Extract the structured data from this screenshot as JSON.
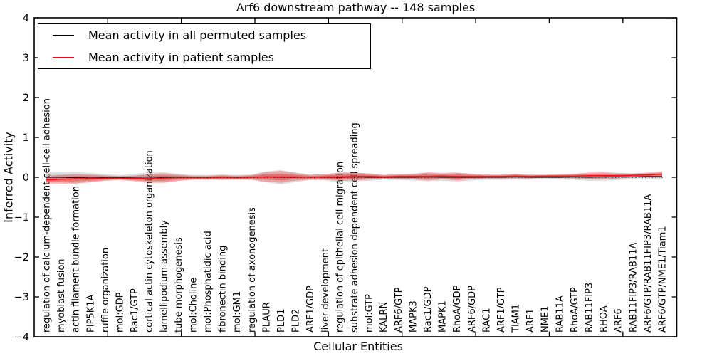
{
  "chart_data": {
    "type": "line",
    "title": "Arf6 downstream pathway -- 148 samples",
    "xlabel": "Cellular Entities",
    "ylabel": "Inferred Activity",
    "ylim": [
      -4,
      4
    ],
    "yticks": [
      4,
      3,
      2,
      1,
      0,
      -1,
      -2,
      -3,
      -4
    ],
    "grid": false,
    "legend_position": "upper left",
    "zero_line": {
      "style": "dotted",
      "color": "#000000",
      "y": 0
    },
    "categories": [
      "regulation of calcium-dependent cell-cell adhesion",
      "myoblast fusion",
      "actin filament bundle formation",
      "PIP5K1A",
      "ruffle organization",
      "mol:GDP",
      "Rac1/GTP",
      "cortical actin cytoskeleton organization",
      "lamellipodium assembly",
      "tube morphogenesis",
      "mol:Choline",
      "mol:Phosphatidic acid",
      "fibronectin binding",
      "mol:GM1",
      "regulation of axonogenesis",
      "PLAUR",
      "PLD1",
      "PLD2",
      "ARF1/GDP",
      "liver development",
      "regulation of epithelial cell migration",
      "substrate adhesion-dependent cell spreading",
      "mol:GTP",
      "KALRN",
      "ARF6/GTP",
      "MAPK3",
      "Rac1/GDP",
      "MAPK1",
      "RhoA/GDP",
      "ARF6/GDP",
      "RAC1",
      "ARF1/GTP",
      "TIAM1",
      "ARF1",
      "NME1",
      "RAB11A",
      "RhoA/GTP",
      "RAB11FIP3",
      "RHOA",
      "ARF6",
      "RAB11FIP3/RAB11A",
      "ARF6/GTP/RAB11FIP3/RAB11A",
      "ARF6/GTP/NME1/Tiam1"
    ],
    "series": [
      {
        "name": "Mean activity in all permuted samples",
        "color": "#000000",
        "band_color": "#999999",
        "values": [
          0.0,
          0.0,
          -0.01,
          0.0,
          0.0,
          0.0,
          0.0,
          0.01,
          0.0,
          0.0,
          0.0,
          0.0,
          0.0,
          0.0,
          0.0,
          0.01,
          0.0,
          0.0,
          0.0,
          0.0,
          0.0,
          0.01,
          0.0,
          0.0,
          0.0,
          0.0,
          0.01,
          0.0,
          0.0,
          0.0,
          0.0,
          0.0,
          0.01,
          0.0,
          0.0,
          0.0,
          0.01,
          0.0,
          0.01,
          0.01,
          0.01,
          0.02,
          0.02
        ],
        "band_halfwidth": [
          0.13,
          0.13,
          0.14,
          0.11,
          0.08,
          0.06,
          0.08,
          0.12,
          0.13,
          0.09,
          0.06,
          0.06,
          0.07,
          0.06,
          0.07,
          0.14,
          0.18,
          0.12,
          0.07,
          0.08,
          0.12,
          0.11,
          0.09,
          0.06,
          0.07,
          0.08,
          0.11,
          0.09,
          0.11,
          0.08,
          0.06,
          0.06,
          0.07,
          0.06,
          0.05,
          0.06,
          0.07,
          0.09,
          0.1,
          0.08,
          0.06,
          0.07,
          0.08
        ]
      },
      {
        "name": "Mean activity in patient samples",
        "color": "#ee1111",
        "band_color": "#ee3333",
        "values": [
          -0.07,
          -0.05,
          -0.04,
          -0.03,
          -0.02,
          -0.02,
          -0.03,
          -0.03,
          -0.02,
          -0.01,
          -0.01,
          -0.01,
          0.0,
          -0.01,
          0.0,
          0.01,
          0.01,
          0.01,
          0.0,
          0.01,
          0.01,
          0.02,
          0.02,
          0.01,
          0.02,
          0.02,
          0.02,
          0.03,
          0.02,
          0.02,
          0.02,
          0.02,
          0.03,
          0.02,
          0.03,
          0.03,
          0.03,
          0.04,
          0.04,
          0.04,
          0.05,
          0.06,
          0.08
        ],
        "band_halfwidth": [
          0.1,
          0.11,
          0.12,
          0.1,
          0.07,
          0.05,
          0.07,
          0.11,
          0.12,
          0.08,
          0.05,
          0.05,
          0.06,
          0.05,
          0.06,
          0.12,
          0.15,
          0.1,
          0.06,
          0.07,
          0.1,
          0.1,
          0.08,
          0.05,
          0.06,
          0.07,
          0.1,
          0.08,
          0.1,
          0.07,
          0.05,
          0.05,
          0.06,
          0.05,
          0.04,
          0.05,
          0.06,
          0.08,
          0.09,
          0.07,
          0.05,
          0.06,
          0.07
        ]
      }
    ]
  }
}
